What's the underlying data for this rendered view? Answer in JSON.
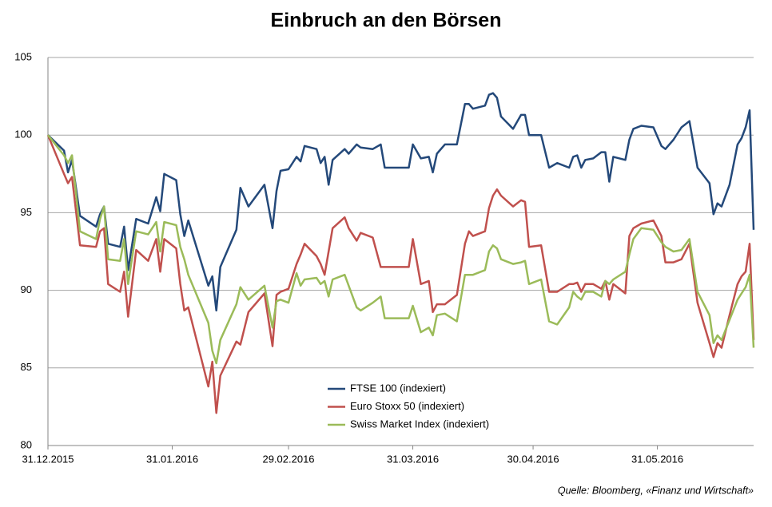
{
  "chart_data": {
    "type": "line",
    "title": "Einbruch an den Börsen",
    "source": "Quelle: Bloomberg, «Finanz und Wirtschaft»",
    "legend": "lower-center",
    "grid": true,
    "xlim": [
      "31.12.2015",
      "24.06.2016"
    ],
    "xticks": [
      "31.12.2015",
      "31.01.2016",
      "29.02.2016",
      "31.03.2016",
      "30.04.2016",
      "31.05.2016"
    ],
    "ylim": [
      80,
      105
    ],
    "yticks": [
      80,
      85,
      90,
      95,
      100,
      105
    ],
    "x": [
      "31.12.2015",
      "04.01.2016",
      "05.01.2016",
      "06.01.2016",
      "08.01.2016",
      "12.01.2016",
      "13.01.2016",
      "14.01.2016",
      "15.01.2016",
      "18.01.2016",
      "19.01.2016",
      "20.01.2016",
      "22.01.2016",
      "25.01.2016",
      "27.01.2016",
      "28.01.2016",
      "29.01.2016",
      "01.02.2016",
      "02.02.2016",
      "03.02.2016",
      "04.02.2016",
      "09.02.2016",
      "10.02.2016",
      "11.02.2016",
      "12.02.2016",
      "16.02.2016",
      "17.02.2016",
      "19.02.2016",
      "23.02.2016",
      "25.02.2016",
      "26.02.2016",
      "27.02.2016",
      "29.02.2016",
      "02.03.2016",
      "03.03.2016",
      "04.03.2016",
      "07.03.2016",
      "08.03.2016",
      "09.03.2016",
      "10.03.2016",
      "11.03.2016",
      "14.03.2016",
      "15.03.2016",
      "17.03.2016",
      "18.03.2016",
      "21.03.2016",
      "23.03.2016",
      "24.03.2016",
      "30.03.2016",
      "31.03.2016",
      "02.04.2016",
      "04.04.2016",
      "05.04.2016",
      "06.04.2016",
      "08.04.2016",
      "11.04.2016",
      "13.04.2016",
      "14.04.2016",
      "15.04.2016",
      "18.04.2016",
      "19.04.2016",
      "20.04.2016",
      "21.04.2016",
      "22.04.2016",
      "25.04.2016",
      "27.04.2016",
      "28.04.2016",
      "29.04.2016",
      "02.05.2016",
      "04.05.2016",
      "06.05.2016",
      "09.05.2016",
      "10.05.2016",
      "11.05.2016",
      "12.05.2016",
      "13.05.2016",
      "15.05.2016",
      "17.05.2016",
      "18.05.2016",
      "19.05.2016",
      "20.05.2016",
      "23.05.2016",
      "24.05.2016",
      "25.05.2016",
      "27.05.2016",
      "30.05.2016",
      "01.06.2016",
      "02.06.2016",
      "04.06.2016",
      "06.06.2016",
      "08.06.2016",
      "10.06.2016",
      "13.06.2016",
      "14.06.2016",
      "15.06.2016",
      "16.06.2016",
      "18.06.2016",
      "20.06.2016",
      "21.06.2016",
      "22.06.2016",
      "23.06.2016",
      "24.06.2016"
    ],
    "series": [
      {
        "name": "FTSE 100 (indexiert)",
        "color": "#24497a",
        "values": [
          100,
          99,
          97.6,
          98.4,
          94.8,
          94.1,
          94.9,
          95.4,
          93,
          92.8,
          94.1,
          91.3,
          94.6,
          94.3,
          96,
          95.1,
          97.5,
          97.1,
          94.9,
          93.5,
          94.5,
          90.3,
          90.9,
          88.7,
          91.5,
          93.9,
          96.6,
          95.4,
          96.8,
          94,
          96.4,
          97.7,
          97.8,
          98.6,
          98.3,
          99.3,
          99.1,
          98.2,
          98.6,
          96.8,
          98.4,
          99.1,
          98.8,
          99.4,
          99.2,
          99.1,
          99.4,
          97.9,
          97.9,
          99.4,
          98.5,
          98.6,
          97.6,
          98.8,
          99.4,
          99.4,
          102,
          102,
          101.7,
          101.9,
          102.6,
          102.7,
          102.4,
          101.2,
          100.4,
          101.3,
          101.3,
          100,
          100,
          97.9,
          98.2,
          97.9,
          98.6,
          98.7,
          97.9,
          98.4,
          98.5,
          98.9,
          98.9,
          97,
          98.6,
          98.4,
          99.7,
          100.4,
          100.6,
          100.5,
          99.3,
          99.1,
          99.7,
          100.5,
          100.9,
          97.9,
          96.9,
          94.9,
          95.6,
          95.4,
          96.8,
          99.4,
          99.8,
          100.5,
          101.6,
          93.9
        ]
      },
      {
        "name": "Euro Stoxx 50 (indexiert)",
        "color": "#c0504d",
        "values": [
          100,
          97.5,
          96.9,
          97.3,
          92.9,
          92.8,
          93.8,
          94,
          90.4,
          89.9,
          91.2,
          88.3,
          92.6,
          91.9,
          93.3,
          91.2,
          93.3,
          92.7,
          90.4,
          88.7,
          88.9,
          83.8,
          85.4,
          82.1,
          84.5,
          86.7,
          86.5,
          88.6,
          89.8,
          86.4,
          89.7,
          89.9,
          90.1,
          91.7,
          92.3,
          93,
          92.2,
          91.7,
          91,
          92.5,
          94,
          94.7,
          94,
          93.2,
          93.7,
          93.4,
          91.5,
          91.5,
          91.5,
          93.3,
          90.4,
          90.6,
          88.6,
          89.1,
          89.1,
          89.7,
          93,
          93.8,
          93.5,
          93.8,
          95.3,
          96.1,
          96.5,
          96.1,
          95.4,
          95.8,
          95.7,
          92.8,
          92.9,
          89.9,
          89.9,
          90.4,
          90.4,
          90.5,
          89.9,
          90.4,
          90.4,
          90.1,
          90.6,
          89.4,
          90.4,
          89.8,
          93.5,
          94,
          94.3,
          94.5,
          93.5,
          91.8,
          91.8,
          92,
          93,
          89.2,
          86.6,
          85.7,
          86.6,
          86.3,
          88.4,
          90.4,
          90.9,
          91.2,
          93,
          86.8
        ]
      },
      {
        "name": "Swiss Market Index (indexiert)",
        "color": "#9bbb59",
        "values": [
          100,
          98.7,
          98.2,
          98.7,
          93.8,
          93.3,
          94.6,
          95.4,
          92,
          91.9,
          93.3,
          90.4,
          93.8,
          93.6,
          94.4,
          92.5,
          94.4,
          94.2,
          92.8,
          92,
          91,
          87.9,
          86.1,
          85.3,
          86.8,
          89.1,
          90.2,
          89.4,
          90.3,
          87.6,
          89.3,
          89.4,
          89.2,
          91.1,
          90.3,
          90.7,
          90.8,
          90.4,
          90.6,
          89.6,
          90.7,
          91,
          90.3,
          88.9,
          88.7,
          89.2,
          89.6,
          88.2,
          88.2,
          89,
          87.3,
          87.6,
          87.1,
          88.4,
          88.5,
          88,
          91,
          91,
          91,
          91.3,
          92.5,
          92.9,
          92.7,
          92,
          91.7,
          91.8,
          91.9,
          90.4,
          90.7,
          88,
          87.8,
          88.9,
          89.9,
          89.6,
          89.4,
          89.9,
          89.9,
          89.6,
          90.6,
          90.4,
          90.7,
          91.2,
          92.3,
          93.3,
          94,
          93.9,
          93.1,
          92.8,
          92.5,
          92.6,
          93.3,
          89.9,
          88.4,
          86.6,
          87.1,
          86.8,
          88.1,
          89.4,
          89.8,
          90.2,
          91,
          86.3
        ]
      }
    ]
  }
}
